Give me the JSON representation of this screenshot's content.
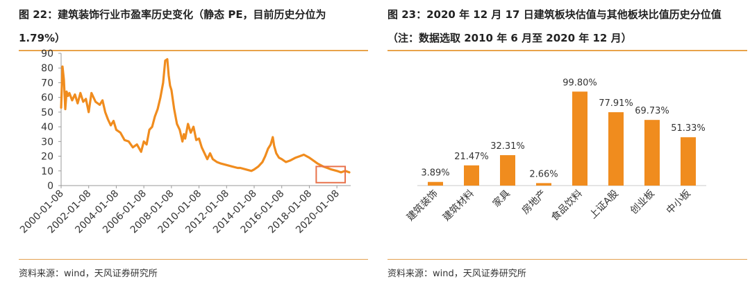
{
  "panel_left": {
    "title": "图 22：建筑装饰行业市盈率历史变化（静态 PE，目前历史分位为 1.79%）",
    "source": "资料来源：wind，天风证券研究所"
  },
  "panel_right": {
    "title": "图 23：2020 年 12 月 17 日建筑板块估值与其他板块比值历史分位值（注：数据选取 2010 年 6 月至 2020 年 12 月）",
    "source": "资料来源：wind，天风证券研究所"
  },
  "colors": {
    "accent": "#F08C1E",
    "rule": "#E8A24A",
    "highlight_box": "#E8714A"
  },
  "chart_data": [
    {
      "type": "line",
      "title": "",
      "xlabel": "",
      "ylabel": "",
      "ylim": [
        0,
        90
      ],
      "y_ticks": [
        0,
        10,
        20,
        30,
        40,
        50,
        60,
        70,
        80,
        90
      ],
      "x_ticks": [
        "2000-01-08",
        "2002-01-08",
        "2004-01-08",
        "2006-01-08",
        "2008-01-08",
        "2010-01-08",
        "2012-01-08",
        "2014-01-08",
        "2016-01-08",
        "2018-01-08",
        "2020-01-08"
      ],
      "grid": false,
      "legend": "none",
      "highlight_range": {
        "x_from": 2018.5,
        "x_to": 2020.6,
        "y_from": 2,
        "y_to": 13
      },
      "series": [
        {
          "x": [
            2000.0,
            2000.1,
            2000.2,
            2000.3,
            2000.4,
            2000.5,
            2000.6,
            2000.8,
            2001.0,
            2001.2,
            2001.4,
            2001.6,
            2001.8,
            2002.0,
            2002.2,
            2002.5,
            2002.8,
            2003.0,
            2003.2,
            2003.4,
            2003.6,
            2003.8,
            2004.0,
            2004.3,
            2004.6,
            2004.9,
            2005.2,
            2005.5,
            2005.8,
            2006.0,
            2006.2,
            2006.4,
            2006.6,
            2006.8,
            2007.0,
            2007.2,
            2007.4,
            2007.55,
            2007.7,
            2007.8,
            2007.9,
            2008.0,
            2008.2,
            2008.4,
            2008.6,
            2008.8,
            2008.9,
            2009.0,
            2009.2,
            2009.4,
            2009.6,
            2009.8,
            2010.0,
            2010.2,
            2010.4,
            2010.6,
            2010.8,
            2011.0,
            2011.3,
            2011.6,
            2012.0,
            2012.4,
            2012.8,
            2013.0,
            2013.4,
            2013.8,
            2014.0,
            2014.3,
            2014.6,
            2014.8,
            2015.0,
            2015.2,
            2015.35,
            2015.45,
            2015.6,
            2015.8,
            2016.0,
            2016.3,
            2016.6,
            2017.0,
            2017.3,
            2017.6,
            2018.0,
            2018.3,
            2018.6,
            2019.0,
            2019.3,
            2019.6,
            2020.0,
            2020.3,
            2020.6,
            2020.9
          ],
          "y": [
            53,
            81,
            72,
            52,
            64,
            61,
            63,
            58,
            62,
            56,
            63,
            57,
            59,
            50,
            63,
            57,
            55,
            58,
            50,
            45,
            41,
            44,
            38,
            36,
            31,
            30,
            26,
            28,
            23,
            30,
            28,
            38,
            40,
            47,
            52,
            60,
            70,
            85,
            86,
            75,
            68,
            65,
            52,
            42,
            38,
            30,
            35,
            32,
            42,
            36,
            40,
            31,
            32,
            26,
            22,
            18,
            22,
            18,
            16,
            15,
            14,
            13,
            12,
            12,
            11,
            10,
            11,
            13,
            16,
            20,
            25,
            28,
            33,
            27,
            22,
            19,
            18,
            16,
            17,
            19,
            20,
            21,
            19,
            17,
            15,
            13,
            12,
            11,
            10,
            9,
            10,
            9
          ]
        }
      ]
    },
    {
      "type": "bar",
      "title": "",
      "xlabel": "",
      "ylabel": "",
      "categories": [
        "建筑装饰",
        "建筑材料",
        "家具",
        "房地产",
        "食品饮料",
        "上证A股",
        "创业板",
        "中小板"
      ],
      "values": [
        3.89,
        21.47,
        32.31,
        2.66,
        99.8,
        77.91,
        69.73,
        51.33
      ],
      "value_labels": [
        "3.89%",
        "21.47%",
        "32.31%",
        "2.66%",
        "99.80%",
        "77.91%",
        "69.73%",
        "51.33%"
      ],
      "ylim": [
        0,
        100
      ],
      "grid": false,
      "legend": "none"
    }
  ]
}
